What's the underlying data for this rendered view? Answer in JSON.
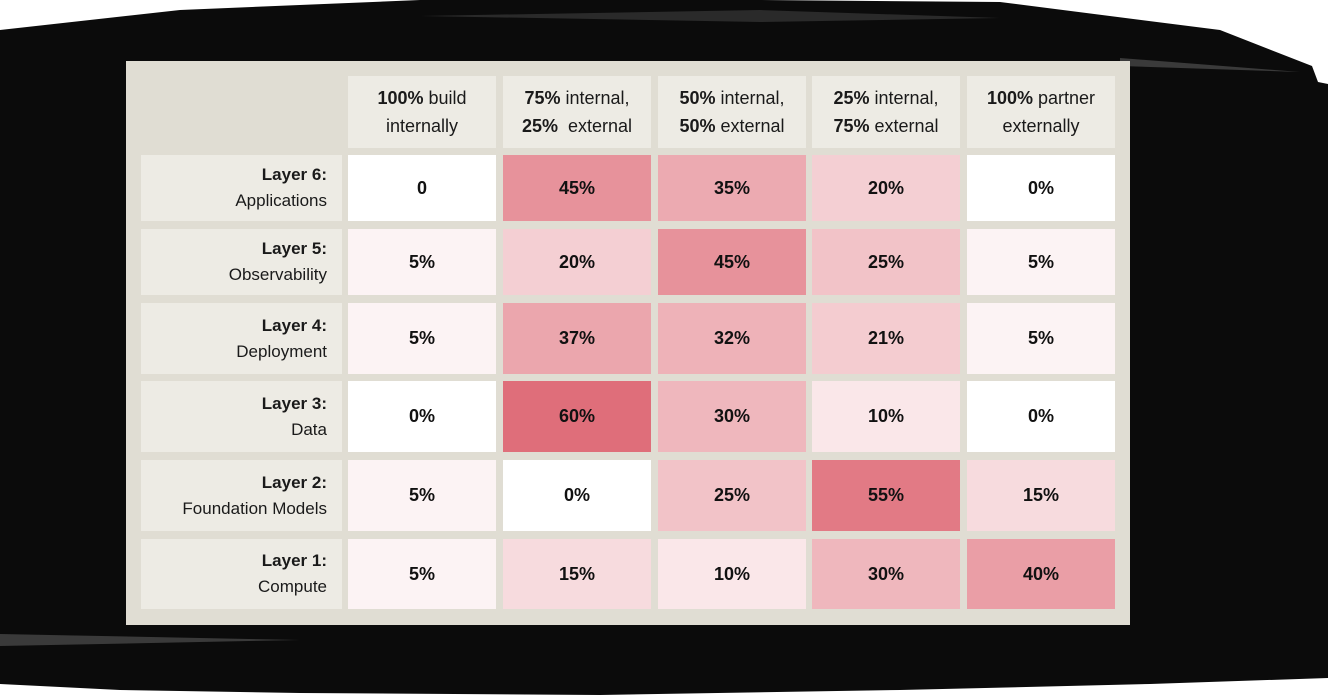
{
  "colors": {
    "page_background": "#ffffff",
    "brush_stroke": "#0b0b0b",
    "panel_background": "#e0ddd3",
    "header_background": "#edebe4",
    "heat_low": "#ffffff",
    "heat_high": "#df6e7a"
  },
  "chart_data": {
    "type": "heatmap",
    "title": "",
    "columns": [
      {
        "bold": "100%",
        "rest1": " build",
        "line2_bold": "",
        "line2": "internally"
      },
      {
        "bold": "75%",
        "rest1": " internal,",
        "line2_bold": "25%",
        "line2": "  external"
      },
      {
        "bold": "50%",
        "rest1": " internal,",
        "line2_bold": "50%",
        "line2": " external"
      },
      {
        "bold": "25%",
        "rest1": " internal,",
        "line2_bold": "75%",
        "line2": " external"
      },
      {
        "bold": "100%",
        "rest1": " partner",
        "line2_bold": "",
        "line2": "externally"
      }
    ],
    "rows": [
      {
        "title": "Layer 6:",
        "name": "Applications",
        "labels": [
          "0",
          "45%",
          "35%",
          "20%",
          "0%"
        ],
        "values": [
          0,
          45,
          35,
          20,
          0
        ]
      },
      {
        "title": "Layer 5:",
        "name": "Observability",
        "labels": [
          "5%",
          "20%",
          "45%",
          "25%",
          "5%"
        ],
        "values": [
          5,
          20,
          45,
          25,
          5
        ]
      },
      {
        "title": "Layer 4:",
        "name": "Deployment",
        "labels": [
          "5%",
          "37%",
          "32%",
          "21%",
          "5%"
        ],
        "values": [
          5,
          37,
          32,
          21,
          5
        ]
      },
      {
        "title": "Layer 3:",
        "name": "Data",
        "labels": [
          "0%",
          "60%",
          "30%",
          "10%",
          "0%"
        ],
        "values": [
          0,
          60,
          30,
          10,
          0
        ]
      },
      {
        "title": "Layer 2:",
        "name": "Foundation Models",
        "labels": [
          "5%",
          "0%",
          "25%",
          "55%",
          "15%"
        ],
        "values": [
          5,
          0,
          25,
          55,
          15
        ]
      },
      {
        "title": "Layer 1:",
        "name": "Compute",
        "labels": [
          "5%",
          "15%",
          "10%",
          "30%",
          "40%"
        ],
        "values": [
          5,
          15,
          10,
          30,
          40
        ]
      }
    ],
    "value_range": [
      0,
      60
    ]
  }
}
